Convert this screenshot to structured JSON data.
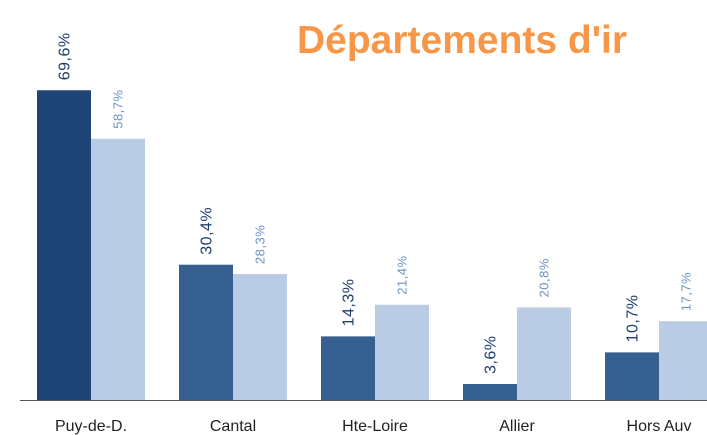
{
  "chart_data": {
    "type": "bar",
    "title": "Départements d'ir",
    "categories": [
      "Puy-de-D.",
      "Cantal",
      "Hte-Loire",
      "Allier",
      "Hors Auv"
    ],
    "series": [
      {
        "color": "#35608f",
        "colors": [
          "#1f4576",
          "#35608f",
          "#35608f",
          "#35608f",
          "#35608f"
        ],
        "values": [
          69.6,
          30.4,
          14.3,
          3.6,
          10.7
        ],
        "value_labels": [
          "69,6%",
          "30,4%",
          "14,3%",
          "3,6%",
          "10,7%"
        ]
      },
      {
        "color": "#b9cce4",
        "values": [
          58.7,
          28.3,
          21.4,
          20.8,
          17.7
        ],
        "value_labels": [
          "58,7%",
          "28,3%",
          "21,4%",
          "20,8%",
          "17,7%"
        ]
      }
    ],
    "ylim": [
      0,
      70
    ]
  }
}
